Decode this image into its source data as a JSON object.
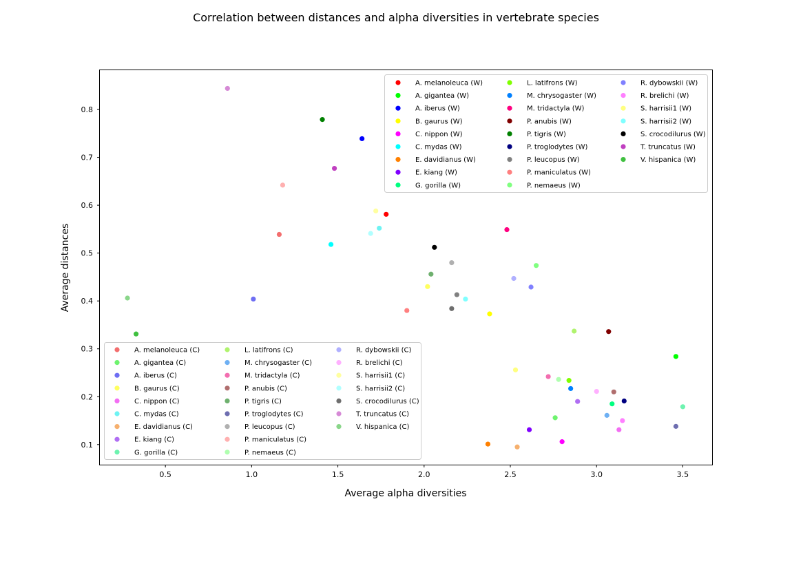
{
  "chart_data": {
    "type": "scatter",
    "title": "Correlation between distances and alpha diversities in vertebrate species",
    "xlabel": "Average alpha diversities",
    "ylabel": "Average distances",
    "xlim": [
      0.12,
      3.67
    ],
    "ylim": [
      0.058,
      0.882
    ],
    "xticks": [
      0.5,
      1.0,
      1.5,
      2.0,
      2.5,
      3.0,
      3.5
    ],
    "yticks": [
      0.1,
      0.2,
      0.3,
      0.4,
      0.5,
      0.6,
      0.7,
      0.8
    ],
    "grid": false,
    "legends": [
      {
        "placement": "upper right",
        "group": "W"
      },
      {
        "placement": "lower left",
        "group": "C"
      }
    ],
    "series": [
      {
        "name": "A. melanoleuca (W)",
        "color": "#ff0000",
        "group": "W",
        "x": 1.78,
        "y": 0.581
      },
      {
        "name": "A. gigantea (W)",
        "color": "#00ff00",
        "group": "W",
        "x": 3.46,
        "y": 0.284
      },
      {
        "name": "A. iberus (W)",
        "color": "#0000ff",
        "group": "W",
        "x": 1.64,
        "y": 0.739
      },
      {
        "name": "B. gaurus (W)",
        "color": "#ffff00",
        "group": "W",
        "x": 2.38,
        "y": 0.373
      },
      {
        "name": "C. nippon (W)",
        "color": "#ff00ff",
        "group": "W",
        "x": 2.8,
        "y": 0.106
      },
      {
        "name": "C. mydas (W)",
        "color": "#00ffff",
        "group": "W",
        "x": 1.46,
        "y": 0.518
      },
      {
        "name": "E. davidianus (W)",
        "color": "#ff8000",
        "group": "W",
        "x": 2.37,
        "y": 0.101
      },
      {
        "name": "E. kiang (W)",
        "color": "#8000ff",
        "group": "W",
        "x": 2.61,
        "y": 0.131
      },
      {
        "name": "G. gorilla (W)",
        "color": "#00ff80",
        "group": "W",
        "x": 3.09,
        "y": 0.185
      },
      {
        "name": "L. latifrons (W)",
        "color": "#80ff00",
        "group": "W",
        "x": 2.84,
        "y": 0.234
      },
      {
        "name": "M. chrysogaster (W)",
        "color": "#0080ff",
        "group": "W",
        "x": 2.85,
        "y": 0.217
      },
      {
        "name": "M. tridactyla (W)",
        "color": "#ff0080",
        "group": "W",
        "x": 2.48,
        "y": 0.549
      },
      {
        "name": "P. anubis (W)",
        "color": "#800000",
        "group": "W",
        "x": 3.07,
        "y": 0.336
      },
      {
        "name": "P. tigris (W)",
        "color": "#008000",
        "group": "W",
        "x": 1.41,
        "y": 0.779
      },
      {
        "name": "P. troglodytes (W)",
        "color": "#000080",
        "group": "W",
        "x": 3.16,
        "y": 0.191
      },
      {
        "name": "P. leucopus (W)",
        "color": "#808080",
        "group": "W",
        "x": 2.19,
        "y": 0.413
      },
      {
        "name": "P. maniculatus (W)",
        "color": "#ff8080",
        "group": "W",
        "x": 1.9,
        "y": 0.38
      },
      {
        "name": "P. nemaeus (W)",
        "color": "#80ff80",
        "group": "W",
        "x": 2.65,
        "y": 0.474
      },
      {
        "name": "R. dybowskii (W)",
        "color": "#8080ff",
        "group": "W",
        "x": 2.62,
        "y": 0.429
      },
      {
        "name": "R. brelichi (W)",
        "color": "#ff80ff",
        "group": "W",
        "x": 3.15,
        "y": 0.15
      },
      {
        "name": "S. harrisii1 (W)",
        "color": "#ffff80",
        "group": "W",
        "x": 2.53,
        "y": 0.256
      },
      {
        "name": "S. harrisii2 (W)",
        "color": "#80ffff",
        "group": "W",
        "x": 2.24,
        "y": 0.404
      },
      {
        "name": "S. crocodilurus (W)",
        "color": "#000000",
        "group": "W",
        "x": 2.06,
        "y": 0.512
      },
      {
        "name": "T. truncatus (W)",
        "color": "#c040c0",
        "group": "W",
        "x": 1.48,
        "y": 0.677
      },
      {
        "name": "V. hispanica (W)",
        "color": "#40c040",
        "group": "W",
        "x": 0.33,
        "y": 0.331
      },
      {
        "name": "A. melanoleuca (C)",
        "color": "#f36e6e",
        "group": "C",
        "x": 1.16,
        "y": 0.539
      },
      {
        "name": "A. gigantea (C)",
        "color": "#6ef36e",
        "group": "C",
        "x": 2.76,
        "y": 0.156
      },
      {
        "name": "A. iberus (C)",
        "color": "#6e6ef3",
        "group": "C",
        "x": 1.01,
        "y": 0.404
      },
      {
        "name": "B. gaurus (C)",
        "color": "#ffff60",
        "group": "C",
        "x": 2.02,
        "y": 0.43
      },
      {
        "name": "C. nippon (C)",
        "color": "#f36ef3",
        "group": "C",
        "x": 3.13,
        "y": 0.131
      },
      {
        "name": "C. mydas (C)",
        "color": "#6ef3f3",
        "group": "C",
        "x": 1.74,
        "y": 0.552
      },
      {
        "name": "E. davidianus (C)",
        "color": "#f6b06e",
        "group": "C",
        "x": 2.54,
        "y": 0.095
      },
      {
        "name": "E. kiang (C)",
        "color": "#b06ef3",
        "group": "C",
        "x": 2.89,
        "y": 0.19
      },
      {
        "name": "G. gorilla (C)",
        "color": "#6ef3b0",
        "group": "C",
        "x": 3.5,
        "y": 0.179
      },
      {
        "name": "L. latifrons (C)",
        "color": "#b0f36e",
        "group": "C",
        "x": 2.87,
        "y": 0.337
      },
      {
        "name": "M. chrysogaster (C)",
        "color": "#6eb0f3",
        "group": "C",
        "x": 3.06,
        "y": 0.161
      },
      {
        "name": "M. tridactyla (C)",
        "color": "#f36eb0",
        "group": "C",
        "x": 2.72,
        "y": 0.242
      },
      {
        "name": "P. anubis (C)",
        "color": "#b06e6e",
        "group": "C",
        "x": 3.1,
        "y": 0.21
      },
      {
        "name": "P. tigris (C)",
        "color": "#6eb06e",
        "group": "C",
        "x": 2.04,
        "y": 0.456
      },
      {
        "name": "P. troglodytes (C)",
        "color": "#6e6eb0",
        "group": "C",
        "x": 3.46,
        "y": 0.138
      },
      {
        "name": "P. leucopus (C)",
        "color": "#b0b0b0",
        "group": "C",
        "x": 2.16,
        "y": 0.48
      },
      {
        "name": "P. maniculatus (C)",
        "color": "#ffb0b0",
        "group": "C",
        "x": 1.18,
        "y": 0.642
      },
      {
        "name": "P. nemaeus (C)",
        "color": "#b0ffb0",
        "group": "C",
        "x": 2.78,
        "y": 0.236
      },
      {
        "name": "R. dybowskii (C)",
        "color": "#b0b0ff",
        "group": "C",
        "x": 2.52,
        "y": 0.447
      },
      {
        "name": "R. brelichi (C)",
        "color": "#ffb0ff",
        "group": "C",
        "x": 3.0,
        "y": 0.211
      },
      {
        "name": "S. harrisii1 (C)",
        "color": "#ffffa0",
        "group": "C",
        "x": 1.72,
        "y": 0.588
      },
      {
        "name": "S. harrisii2 (C)",
        "color": "#b0ffff",
        "group": "C",
        "x": 1.69,
        "y": 0.541
      },
      {
        "name": "S. crocodilurus (C)",
        "color": "#6e6e6e",
        "group": "C",
        "x": 2.16,
        "y": 0.384
      },
      {
        "name": "T. truncatus (C)",
        "color": "#d68ad6",
        "group": "C",
        "x": 0.86,
        "y": 0.844
      },
      {
        "name": "V. hispanica (C)",
        "color": "#8ad68a",
        "group": "C",
        "x": 0.28,
        "y": 0.406
      }
    ]
  }
}
